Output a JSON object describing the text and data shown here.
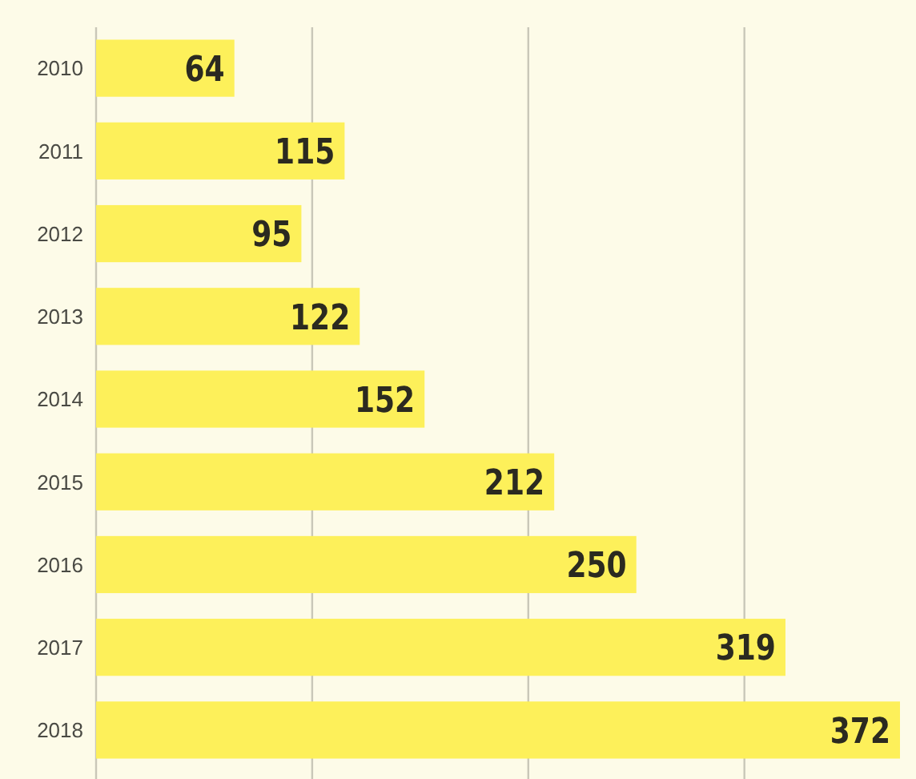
{
  "chart_data": {
    "type": "bar",
    "orientation": "horizontal",
    "categories": [
      "2010",
      "2011",
      "2012",
      "2013",
      "2014",
      "2015",
      "2016",
      "2017",
      "2018"
    ],
    "values": [
      64,
      115,
      95,
      122,
      152,
      212,
      250,
      319,
      372
    ],
    "color": "#fdf05a",
    "xlim": [
      0,
      372
    ],
    "xticks": [
      {
        "value": 100,
        "label": null
      },
      {
        "value": 200,
        "label": null
      },
      {
        "value": 300,
        "label": null
      }
    ],
    "grid": "x",
    "data_labels": true,
    "tick_labels": "y"
  }
}
